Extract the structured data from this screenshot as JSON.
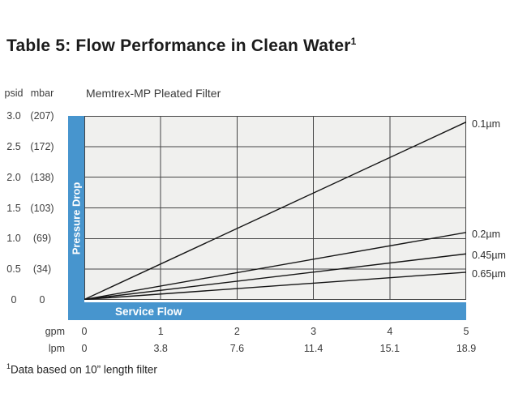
{
  "title": {
    "text": "Table 5: Flow Performance in Clean Water",
    "superscript": "1"
  },
  "chart": {
    "title": "Memtrex-MP Pleated Filter",
    "y_unit_psid": "psid",
    "y_unit_mbar": "mbar",
    "y_axis_bar_label": "Pressure Drop",
    "x_axis_bar_label": "Service Flow",
    "accent_color": "#4795ce",
    "y_ticks": [
      {
        "psid": "3.0",
        "mbar": "(207)"
      },
      {
        "psid": "2.5",
        "mbar": "(172)"
      },
      {
        "psid": "2.0",
        "mbar": "(138)"
      },
      {
        "psid": "1.5",
        "mbar": "(103)"
      },
      {
        "psid": "1.0",
        "mbar": "(69)"
      },
      {
        "psid": "0.5",
        "mbar": "(34)"
      },
      {
        "psid": "0",
        "mbar": "0"
      }
    ],
    "x_rows": [
      {
        "label": "gpm",
        "values": [
          "0",
          "1",
          "2",
          "3",
          "4",
          "5"
        ]
      },
      {
        "label": "lpm",
        "values": [
          "0",
          "3.8",
          "7.6",
          "11.4",
          "15.1",
          "18.9"
        ]
      }
    ]
  },
  "footnote": {
    "superscript": "1",
    "text": "Data based on 10” length filter"
  },
  "chart_data": {
    "type": "line",
    "title": "Memtrex-MP Pleated Filter",
    "xlabel": "Service Flow",
    "ylabel": "Pressure Drop",
    "xlim": [
      0,
      5
    ],
    "ylim": [
      0,
      3.0
    ],
    "grid": true,
    "legend_position": "right-of-line-ends",
    "x_units": [
      {
        "name": "gpm",
        "ticks": [
          0,
          1,
          2,
          3,
          4,
          5
        ]
      },
      {
        "name": "lpm",
        "ticks": [
          0,
          3.8,
          7.6,
          11.4,
          15.1,
          18.9
        ]
      }
    ],
    "y_units": [
      {
        "name": "psid",
        "ticks": [
          0,
          0.5,
          1.0,
          1.5,
          2.0,
          2.5,
          3.0
        ]
      },
      {
        "name": "mbar",
        "ticks": [
          0,
          34,
          69,
          103,
          138,
          172,
          207
        ]
      }
    ],
    "series": [
      {
        "name": "0.1µm",
        "x": [
          0,
          5
        ],
        "y": [
          0,
          2.9
        ]
      },
      {
        "name": "0.2µm",
        "x": [
          0,
          5
        ],
        "y": [
          0,
          1.1
        ]
      },
      {
        "name": "0.45µm",
        "x": [
          0,
          5
        ],
        "y": [
          0,
          0.75
        ]
      },
      {
        "name": "0.65µm",
        "x": [
          0,
          5
        ],
        "y": [
          0,
          0.45
        ]
      }
    ],
    "footnote": "Data based on 10” length filter"
  }
}
